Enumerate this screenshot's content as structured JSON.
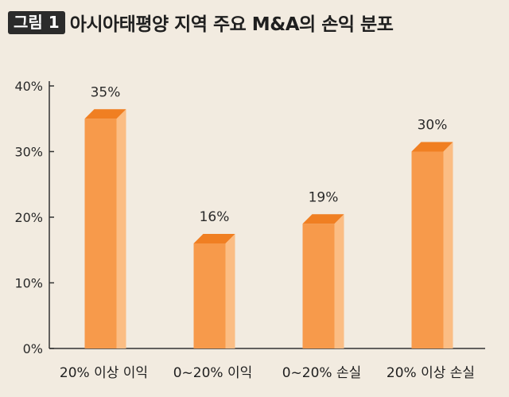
{
  "header": {
    "badge_text": "그림 1",
    "title": "아시아태평양 지역 주요 M&A의 손익 분포"
  },
  "chart_data": {
    "type": "bar",
    "title": "아시아태평양 지역 주요 M&A의 손익 분포",
    "categories": [
      "20% 이상 이익",
      "0~20% 이익",
      "0~20% 손실",
      "20% 이상 손실"
    ],
    "values": [
      35,
      16,
      19,
      30
    ],
    "value_labels": [
      "35%",
      "16%",
      "19%",
      "30%"
    ],
    "yticks": [
      0,
      10,
      20,
      30,
      40
    ],
    "ytick_labels": [
      "0%",
      "10%",
      "20%",
      "30%",
      "40%"
    ],
    "ylim": [
      0,
      40
    ],
    "grid": false,
    "legend": "none",
    "colors": {
      "bar_front": "#f79a4b",
      "bar_side": "#fbbd84",
      "bar_top": "#f07f22",
      "axis": "#333333"
    }
  }
}
